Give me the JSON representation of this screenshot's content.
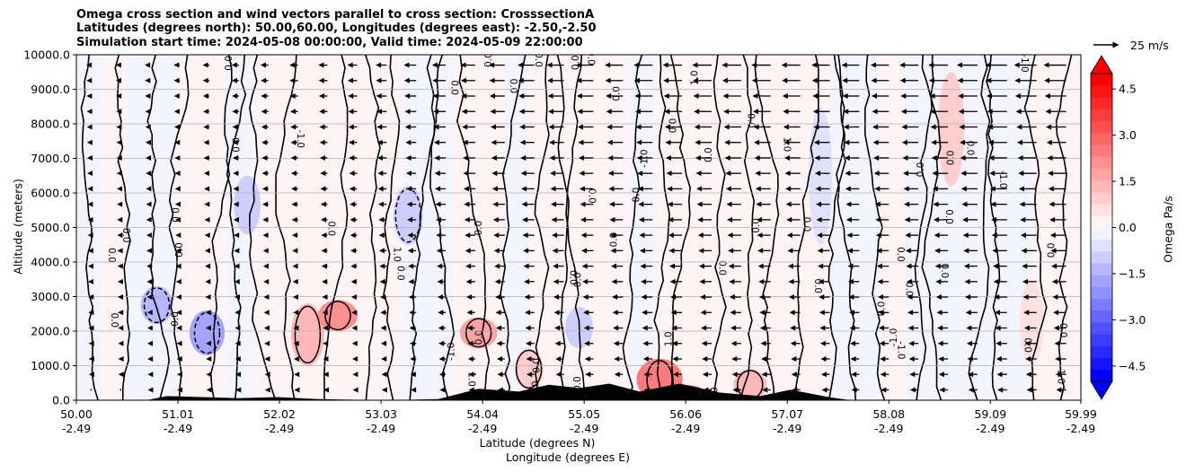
{
  "chart_data": {
    "type": "heatmap",
    "title_lines": [
      "Omega cross section and wind vectors parallel to cross section: CrosssectionA",
      "Latitudes (degrees north): 50.00,60.00, Longitudes (degrees east): -2.50,-2.50",
      "Simulation start time: 2024-05-08 00:00:00, Valid time: 2024-05-09 22:00:00"
    ],
    "xlabel": "Latitude (degrees N)",
    "xlabel2": "Longitude (degrees E)",
    "ylabel": "Altitude (meters)",
    "x_ticks": [
      {
        "lat": "50.00",
        "lon": "-2.49"
      },
      {
        "lat": "51.01",
        "lon": "-2.49"
      },
      {
        "lat": "52.02",
        "lon": "-2.49"
      },
      {
        "lat": "53.03",
        "lon": "-2.49"
      },
      {
        "lat": "54.04",
        "lon": "-2.49"
      },
      {
        "lat": "55.05",
        "lon": "-2.49"
      },
      {
        "lat": "56.06",
        "lon": "-2.49"
      },
      {
        "lat": "57.07",
        "lon": "-2.49"
      },
      {
        "lat": "58.08",
        "lon": "-2.49"
      },
      {
        "lat": "59.09",
        "lon": "-2.49"
      },
      {
        "lat": "59.99",
        "lon": "-2.49"
      }
    ],
    "xlim": [
      50.0,
      59.99
    ],
    "y_ticks": [
      "0.0",
      "1000.0",
      "2000.0",
      "3000.0",
      "4000.0",
      "5000.0",
      "6000.0",
      "7000.0",
      "8000.0",
      "9000.0",
      "10000.0"
    ],
    "ylim": [
      0,
      10000
    ],
    "grid": true,
    "colorbar": {
      "label": "Omega Pa/s",
      "range": [
        -5,
        5
      ],
      "ticks": [
        "−4.5",
        "−3.0",
        "−1.5",
        "0.0",
        "1.5",
        "3.0",
        "4.5"
      ],
      "extend": "both",
      "colors": [
        "#0000ff",
        "#1414ff",
        "#2828ff",
        "#3c3cff",
        "#5050ff",
        "#6666ff",
        "#7b7bff",
        "#9090ff",
        "#a4a4ff",
        "#b8b8ff",
        "#cdcdff",
        "#e1e1ff",
        "#f3f3ff",
        "#fff3f3",
        "#ffe1e1",
        "#ffcdcd",
        "#ffb8b8",
        "#ffa4a4",
        "#ff9090",
        "#ff7b7b",
        "#ff6666",
        "#ff5050",
        "#ff3c3c",
        "#ff2828",
        "#ff1414",
        "#ff0000"
      ]
    },
    "quiver_key": {
      "label": "25 m/s",
      "speed": 25
    },
    "contour_labels": [
      "0.0",
      "-1.0",
      "1.0"
    ],
    "omega_cells": [
      {
        "lat": 50.0,
        "alt_range": [
          0,
          10000
        ],
        "omega": -0.3
      },
      {
        "lat": 50.4,
        "alt_range": [
          4500,
          10000
        ],
        "omega": 0.3
      },
      {
        "lat": 50.8,
        "alt_range": [
          2200,
          3300
        ],
        "omega": -1.3
      },
      {
        "lat": 51.3,
        "alt_range": [
          1300,
          2600
        ],
        "omega": -1.6
      },
      {
        "lat": 51.7,
        "alt_range": [
          4800,
          6500
        ],
        "omega": -0.8
      },
      {
        "lat": 52.3,
        "alt_range": [
          1000,
          2800
        ],
        "omega": 1.4
      },
      {
        "lat": 52.6,
        "alt_range": [
          2000,
          2900
        ],
        "omega": 2.0
      },
      {
        "lat": 53.3,
        "alt_range": [
          4500,
          6200
        ],
        "omega": -1.1
      },
      {
        "lat": 54.0,
        "alt_range": [
          1500,
          2400
        ],
        "omega": 1.8
      },
      {
        "lat": 54.5,
        "alt_range": [
          300,
          1500
        ],
        "omega": 1.0
      },
      {
        "lat": 55.0,
        "alt_range": [
          1500,
          2700
        ],
        "omega": -0.9
      },
      {
        "lat": 55.8,
        "alt_range": [
          0,
          1200
        ],
        "omega": 2.6
      },
      {
        "lat": 56.0,
        "alt_range": [
          0,
          450
        ],
        "omega": 3.2
      },
      {
        "lat": 56.7,
        "alt_range": [
          0,
          900
        ],
        "omega": 1.4
      },
      {
        "lat": 57.4,
        "alt_range": [
          4500,
          8500
        ],
        "omega": -0.5
      },
      {
        "lat": 58.7,
        "alt_range": [
          6200,
          9500
        ],
        "omega": 0.8
      },
      {
        "lat": 59.5,
        "alt_range": [
          1000,
          3500
        ],
        "omega": 0.5
      }
    ],
    "wind": [
      {
        "lat": 50.4,
        "speed": 3
      },
      {
        "lat": 51.2,
        "speed": 4
      },
      {
        "lat": 52.0,
        "speed": 5
      },
      {
        "lat": 52.8,
        "speed": 6
      },
      {
        "lat": 53.5,
        "speed": 8
      },
      {
        "lat": 54.3,
        "speed": 10
      },
      {
        "lat": 55.2,
        "speed": 11
      },
      {
        "lat": 56.0,
        "speed": 12
      },
      {
        "lat": 56.9,
        "speed": 12
      },
      {
        "lat": 57.8,
        "speed": 11
      },
      {
        "lat": 58.6,
        "speed": 12
      },
      {
        "lat": 59.5,
        "speed": 14
      }
    ],
    "terrain": [
      {
        "lat": 50.0,
        "alt": 0
      },
      {
        "lat": 50.7,
        "alt": 0
      },
      {
        "lat": 50.9,
        "alt": 120
      },
      {
        "lat": 51.6,
        "alt": 60
      },
      {
        "lat": 52.0,
        "alt": 90
      },
      {
        "lat": 52.4,
        "alt": 30
      },
      {
        "lat": 53.1,
        "alt": 0
      },
      {
        "lat": 53.6,
        "alt": 30
      },
      {
        "lat": 54.0,
        "alt": 330
      },
      {
        "lat": 54.4,
        "alt": 250
      },
      {
        "lat": 54.7,
        "alt": 450
      },
      {
        "lat": 55.0,
        "alt": 350
      },
      {
        "lat": 55.3,
        "alt": 480
      },
      {
        "lat": 55.6,
        "alt": 250
      },
      {
        "lat": 56.0,
        "alt": 480
      },
      {
        "lat": 56.4,
        "alt": 220
      },
      {
        "lat": 56.8,
        "alt": 120
      },
      {
        "lat": 57.1,
        "alt": 300
      },
      {
        "lat": 57.5,
        "alt": 80
      },
      {
        "lat": 57.7,
        "alt": 0
      },
      {
        "lat": 59.99,
        "alt": 0
      }
    ]
  }
}
